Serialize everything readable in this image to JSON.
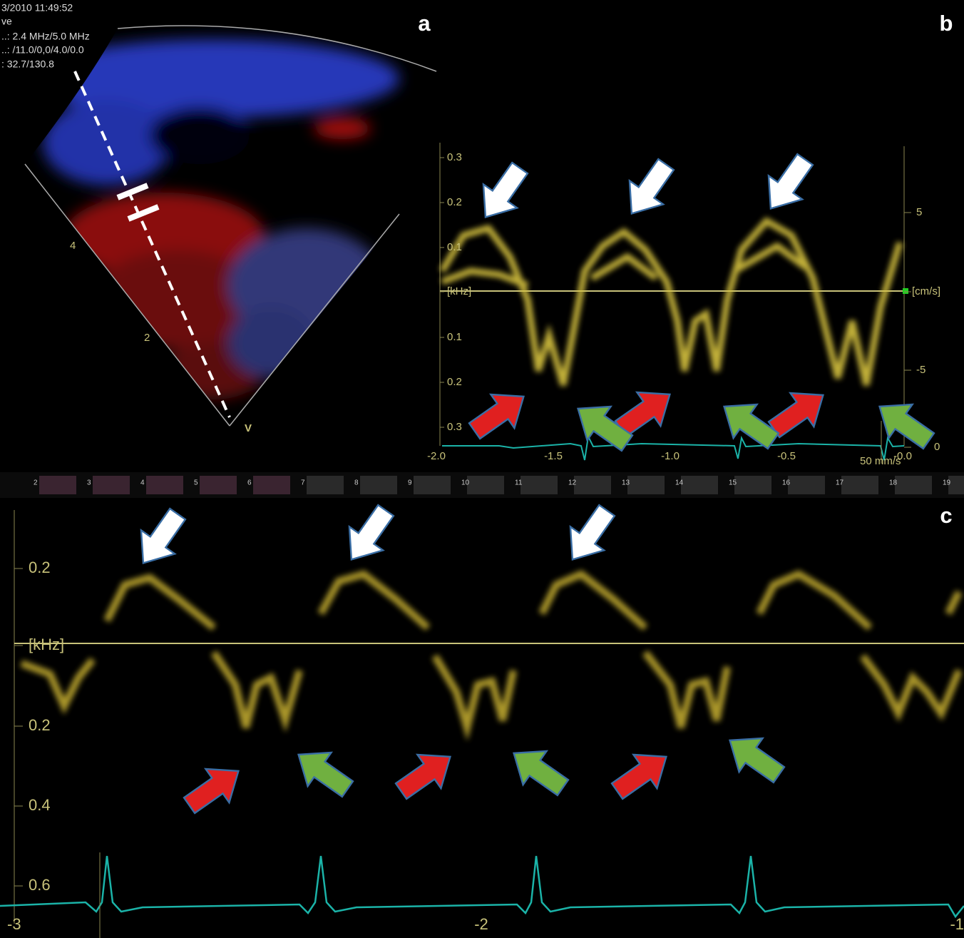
{
  "panel_a": {
    "label": "a",
    "info": [
      "3/2010 11:49:52",
      "ve",
      "..: 2.4 MHz/5.0 MHz",
      "..: /11.0/0,0/4.0/0.0",
      ": 32.7/130.8"
    ],
    "depth_marks": [
      "4",
      "2"
    ],
    "apex_label": "V"
  },
  "panel_b": {
    "label": "b",
    "left_axis": [
      "0.3",
      "0.2",
      "0.1",
      "[kHz]",
      "0.1",
      "0.2",
      "0.3"
    ],
    "right_axis": [
      "5",
      "[cm/s]",
      "-5",
      "0"
    ],
    "time_axis": [
      "-2.0",
      "-1.5",
      "-1.0",
      "-0.5",
      "-0.0"
    ],
    "sweep": "50 mm/s"
  },
  "thumbnails": [
    "2",
    "3",
    "4",
    "5",
    "6",
    "7",
    "8",
    "9",
    "10",
    "11",
    "12",
    "13",
    "14",
    "15",
    "16",
    "17",
    "18",
    "19"
  ],
  "panel_c": {
    "label": "c",
    "left_axis": [
      "0.2",
      "[kHz]",
      "0.2",
      "0.4",
      "0.6"
    ],
    "time_axis": [
      "-3",
      "-2",
      "-1"
    ]
  }
}
